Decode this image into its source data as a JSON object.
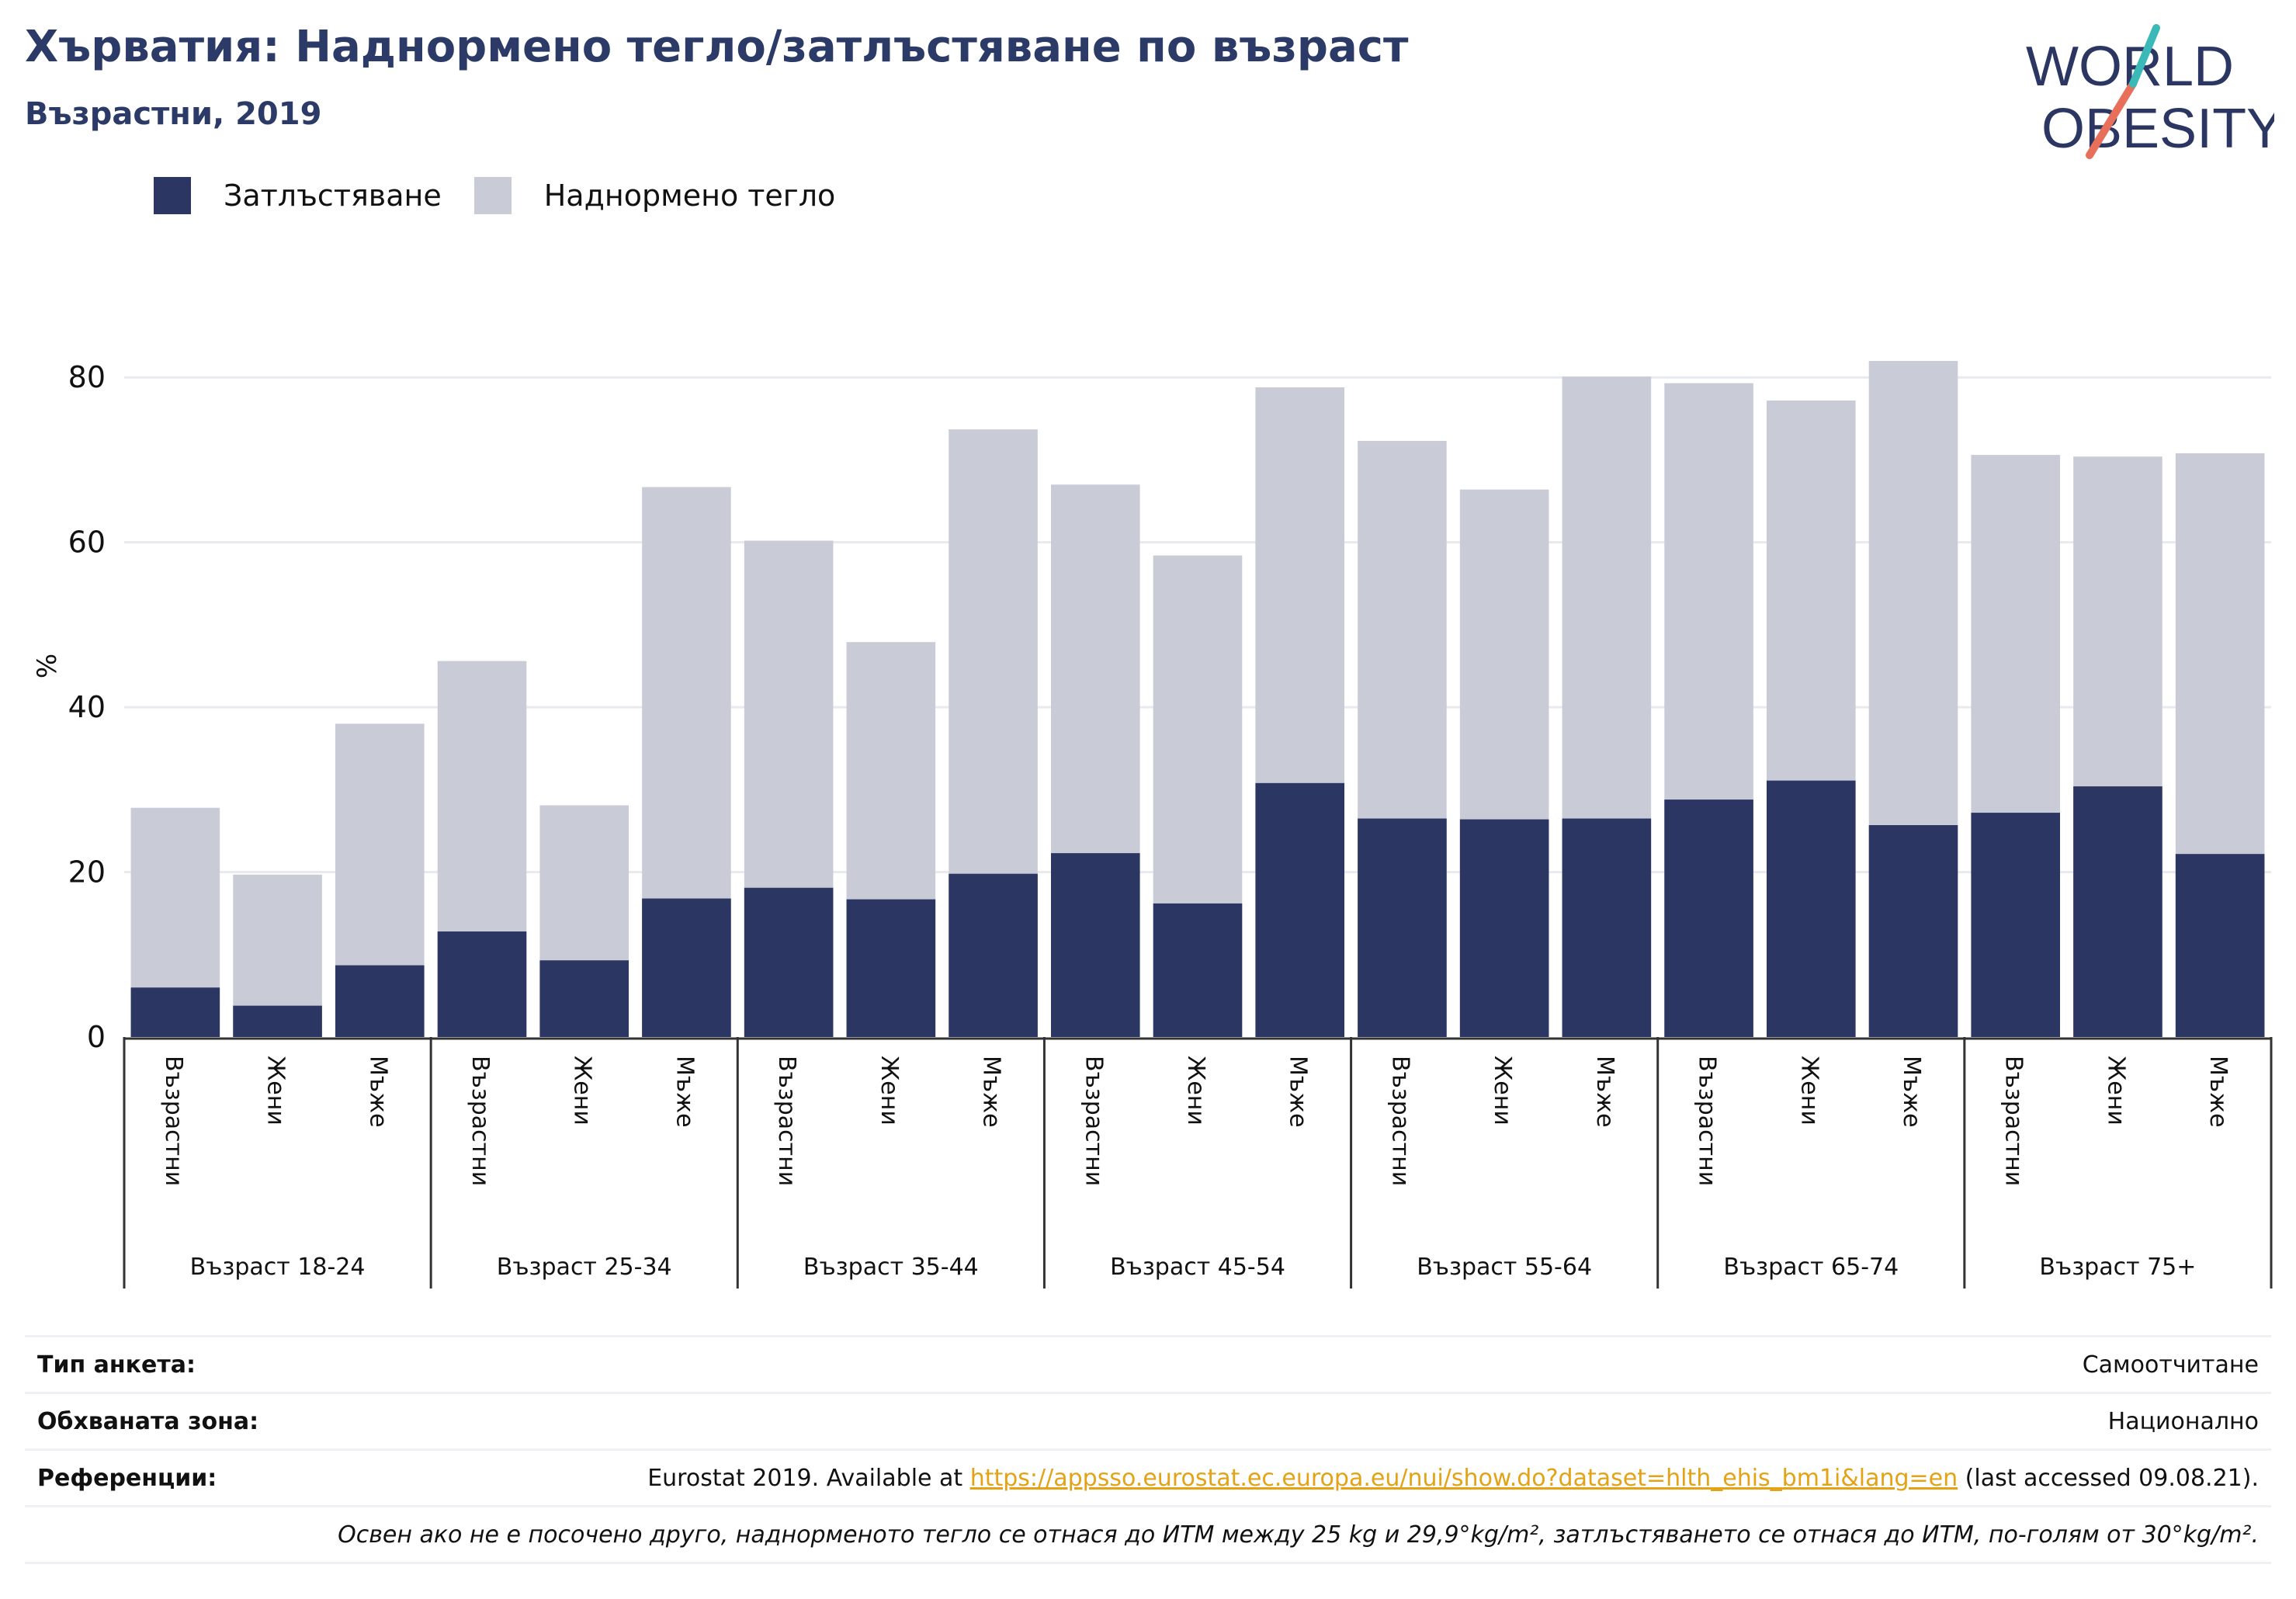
{
  "header": {
    "title": "Хърватия: Наднормено тегло/затлъстяване по възраст",
    "subtitle": "Възрастни, 2019"
  },
  "logo": {
    "line1": "WORLD",
    "line2": "OBESITY"
  },
  "legend": [
    {
      "label": "Затлъстяване",
      "color": "#2b3663"
    },
    {
      "label": "Наднормено тегло",
      "color": "#c9cbd7"
    }
  ],
  "chart_data": {
    "type": "bar",
    "stacked": "overlay",
    "ylabel": "%",
    "ylim": [
      0,
      90
    ],
    "yticks": [
      0,
      20,
      40,
      60,
      80
    ],
    "grid": true,
    "legend_position": "top-left",
    "groups": [
      {
        "label": "Възраст 18-24",
        "categories": [
          "Възрастни",
          "Жени",
          "Мъже"
        ]
      },
      {
        "label": "Възраст 25-34",
        "categories": [
          "Възрастни",
          "Жени",
          "Мъже"
        ]
      },
      {
        "label": "Възраст 35-44",
        "categories": [
          "Възрастни",
          "Жени",
          "Мъже"
        ]
      },
      {
        "label": "Възраст 45-54",
        "categories": [
          "Възрастни",
          "Жени",
          "Мъже"
        ]
      },
      {
        "label": "Възраст 55-64",
        "categories": [
          "Възрастни",
          "Жени",
          "Мъже"
        ]
      },
      {
        "label": "Възраст 65-74",
        "categories": [
          "Възрастни",
          "Жени",
          "Мъже"
        ]
      },
      {
        "label": "Възраст 75+",
        "categories": [
          "Възрастни",
          "Жени",
          "Мъже"
        ]
      }
    ],
    "series": [
      {
        "name": "Наднормено тегло",
        "color": "#c9cbd7",
        "values": [
          27.8,
          19.7,
          38.0,
          45.6,
          28.1,
          66.7,
          60.2,
          47.9,
          73.7,
          67.0,
          58.4,
          78.8,
          72.3,
          66.4,
          80.1,
          79.3,
          77.2,
          82.0,
          70.6,
          70.4,
          70.8
        ]
      },
      {
        "name": "Затлъстяване",
        "color": "#2b3663",
        "values": [
          6.0,
          3.8,
          8.7,
          12.8,
          9.3,
          16.8,
          18.1,
          16.7,
          19.8,
          22.3,
          16.2,
          30.8,
          26.5,
          26.4,
          26.5,
          28.8,
          31.1,
          25.7,
          27.2,
          30.4,
          22.2
        ]
      }
    ]
  },
  "meta": {
    "survey_type_label": "Тип анкета:",
    "survey_type_value": "Самоотчитане",
    "coverage_label": "Обхваната зона:",
    "coverage_value": "Национално",
    "references_label": "Референции:",
    "references_prefix": "Eurostat 2019. Available at ",
    "references_link": "https://appsso.eurostat.ec.europa.eu/nui/show.do?dataset=hlth_ehis_bm1i&lang=en",
    "references_suffix": " (last accessed 09.08.21).",
    "note": "Освен ако не е посочено друго, наднорменото тегло се отнася до ИТМ между 25 kg и 29,9°kg/m², затлъстяването се отнася до ИТМ, по-голям от 30°kg/m²."
  }
}
